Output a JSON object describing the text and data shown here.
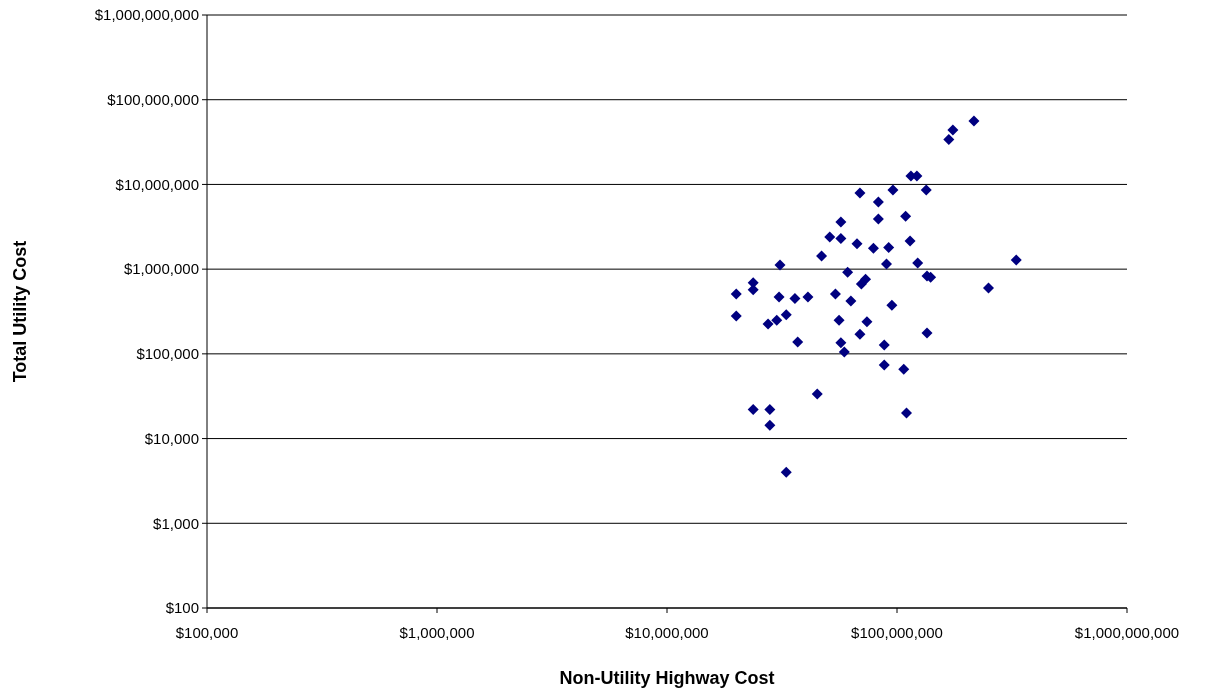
{
  "chart_data": {
    "type": "scatter",
    "xlabel": "Non-Utility Highway Cost",
    "ylabel": "Total Utility Cost",
    "log": "xy",
    "grid": "y",
    "marker": "diamond",
    "xlim": [
      100000,
      1000000000
    ],
    "ylim": [
      100,
      1000000000
    ],
    "xticks": [
      {
        "value": 100000,
        "label": "$100,000"
      },
      {
        "value": 1000000,
        "label": "$1,000,000"
      },
      {
        "value": 10000000,
        "label": "$10,000,000"
      },
      {
        "value": 100000000,
        "label": "$100,000,000"
      },
      {
        "value": 1000000000,
        "label": "$1,000,000,000"
      }
    ],
    "yticks": [
      {
        "value": 100,
        "label": "$100"
      },
      {
        "value": 1000,
        "label": "$1,000"
      },
      {
        "value": 10000,
        "label": "$10,000"
      },
      {
        "value": 100000,
        "label": "$100,000"
      },
      {
        "value": 1000000,
        "label": "$1,000,000"
      },
      {
        "value": 10000000,
        "label": "$10,000,000"
      },
      {
        "value": 100000000,
        "label": "$100,000,000"
      },
      {
        "value": 1000000000,
        "label": "$1,000,000,000"
      }
    ],
    "series": [
      {
        "color": "#000080",
        "x": [
          216000000,
          175000000,
          168000000,
          115000000,
          122000000,
          96000000,
          134000000,
          69000000,
          83000000,
          109000000,
          83000000,
          57000000,
          51000000,
          57000000,
          67000000,
          79000000,
          92000000,
          114000000,
          47000000,
          31000000,
          61000000,
          90000000,
          123000000,
          330000000,
          135000000,
          140000000,
          73000000,
          70000000,
          23700000,
          23700000,
          20000000,
          250000000,
          30700000,
          36000000,
          41000000,
          54000000,
          63000000,
          95000000,
          20000000,
          27500000,
          30000000,
          33000000,
          56000000,
          74000000,
          135000000,
          69000000,
          37000000,
          57000000,
          59000000,
          88000000,
          88000000,
          107000000,
          45000000,
          23700000,
          28000000,
          28000000,
          110000000,
          33000000
        ],
        "values": [
          56000000,
          44000000,
          34000000,
          12600000,
          12600000,
          8600000,
          8600000,
          7900000,
          6200000,
          4200000,
          3900000,
          3600000,
          2400000,
          2300000,
          2000000,
          1770000,
          1800000,
          2150000,
          1430000,
          1120000,
          920000,
          1150000,
          1180000,
          1280000,
          830000,
          800000,
          760000,
          670000,
          690000,
          570000,
          510000,
          600000,
          470000,
          450000,
          470000,
          510000,
          420000,
          375000,
          280000,
          225000,
          250000,
          290000,
          250000,
          240000,
          176000,
          170000,
          138000,
          135000,
          105000,
          127000,
          74000,
          66000,
          33500,
          22000,
          22000,
          14400,
          20000,
          4000
        ]
      }
    ]
  }
}
